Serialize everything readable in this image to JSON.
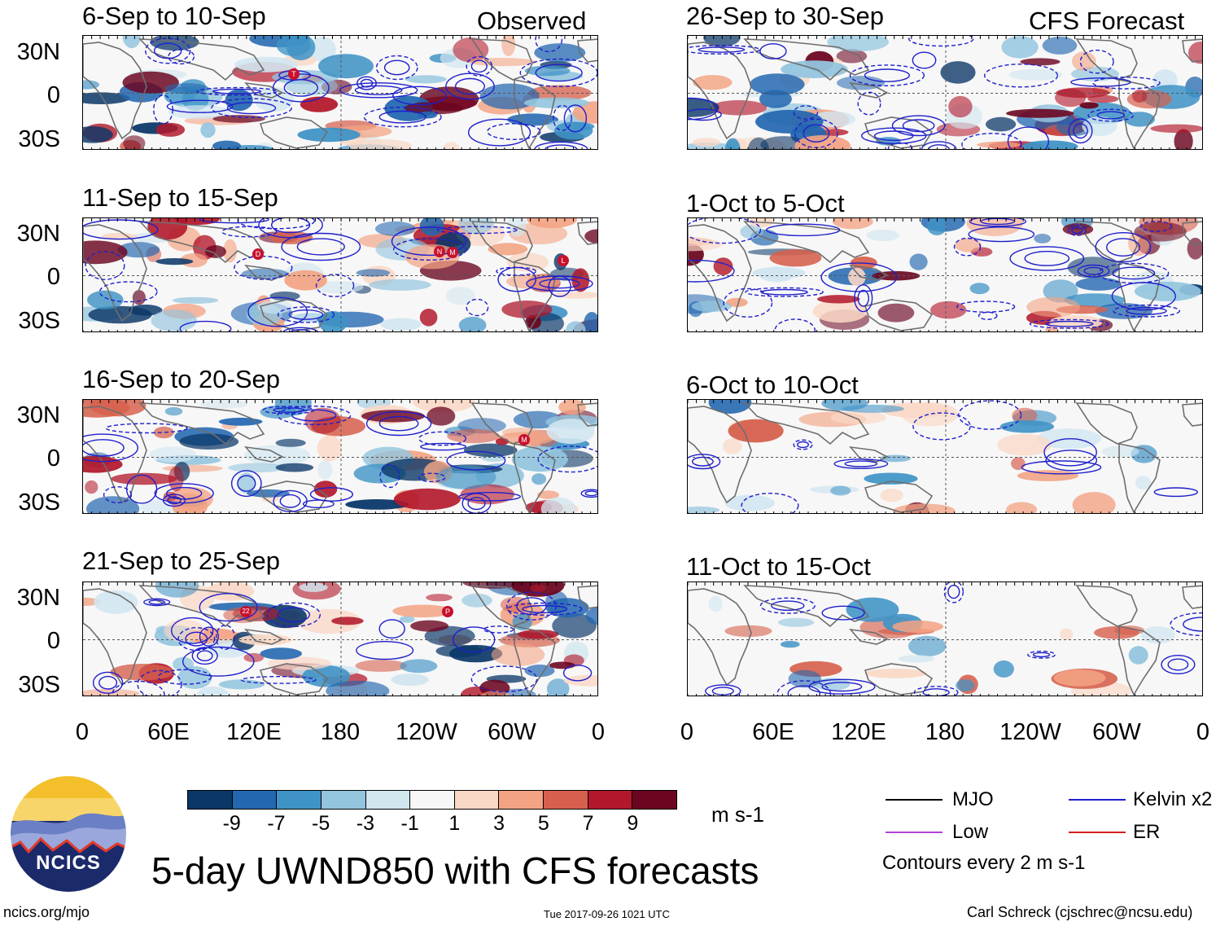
{
  "tags": {
    "observed": "Observed",
    "forecast": "CFS Forecast"
  },
  "panels_left": [
    {
      "title": "6-Sep to 10-Sep"
    },
    {
      "title": "11-Sep to 15-Sep"
    },
    {
      "title": "16-Sep to 20-Sep"
    },
    {
      "title": "21-Sep to 25-Sep"
    }
  ],
  "panels_right": [
    {
      "title": "26-Sep to 30-Sep"
    },
    {
      "title": "1-Oct to 5-Oct"
    },
    {
      "title": "6-Oct to 10-Oct"
    },
    {
      "title": "11-Oct to 15-Oct"
    }
  ],
  "lat_labels": [
    "30N",
    "0",
    "30S"
  ],
  "lon_labels": [
    "0",
    "60E",
    "120E",
    "180",
    "120W",
    "60W",
    "0"
  ],
  "colorbar": {
    "colors": [
      "#0b3768",
      "#2367b0",
      "#3f93c6",
      "#93c5de",
      "#d2e6f0",
      "#f7f7f7",
      "#fad8c6",
      "#f3a383",
      "#d6604d",
      "#b2182b",
      "#6b0520"
    ],
    "labels": [
      "-9",
      "-7",
      "-5",
      "-3",
      "-1",
      "1",
      "3",
      "5",
      "7",
      "9"
    ],
    "units": "m s-1"
  },
  "legend": {
    "mjo": {
      "label": "MJO",
      "color": "#000000"
    },
    "kelvin": {
      "label": "Kelvin x2",
      "color": "#1f1fcc"
    },
    "low": {
      "label": "Low",
      "color": "#b042d6"
    },
    "er": {
      "label": "ER",
      "color": "#d42020"
    },
    "contour_note": "Contours every 2 m s-1"
  },
  "logo": {
    "text": "NCICS"
  },
  "main_title": "5-day UWND850 with CFS forecasts",
  "footer": {
    "url": "ncics.org/mjo",
    "timestamp": "Tue 2017-09-26 1021 UTC",
    "author": "Carl Schreck (cjschrec@ncsu.edu)"
  },
  "storm_markers": {
    "p1": [
      "T"
    ],
    "p2": [
      "D",
      "N",
      "M",
      "L"
    ],
    "p3": [
      "M"
    ],
    "p4": [
      "22",
      "P"
    ]
  }
}
